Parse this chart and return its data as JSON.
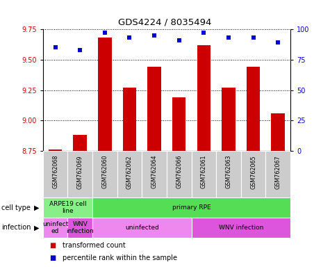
{
  "title": "GDS4224 / 8035494",
  "samples": [
    "GSM762068",
    "GSM762069",
    "GSM762060",
    "GSM762062",
    "GSM762064",
    "GSM762066",
    "GSM762061",
    "GSM762063",
    "GSM762065",
    "GSM762067"
  ],
  "transformed_counts": [
    8.76,
    8.88,
    9.68,
    9.27,
    9.44,
    9.19,
    9.62,
    9.27,
    9.44,
    9.06
  ],
  "percentile_ranks": [
    85,
    83,
    97,
    93,
    95,
    91,
    97,
    93,
    93,
    89
  ],
  "ylim_left": [
    8.75,
    9.75
  ],
  "ylim_right": [
    0,
    100
  ],
  "yticks_left": [
    8.75,
    9.0,
    9.25,
    9.5,
    9.75
  ],
  "yticks_right": [
    0,
    25,
    50,
    75,
    100
  ],
  "bar_color": "#cc0000",
  "dot_color": "#0000cc",
  "sample_bg_color": "#cccccc",
  "cell_type_labels": [
    {
      "label": "ARPE19 cell\nline",
      "start": 0,
      "end": 2,
      "color": "#88ee88"
    },
    {
      "label": "primary RPE",
      "start": 2,
      "end": 10,
      "color": "#55dd55"
    }
  ],
  "infection_labels": [
    {
      "label": "uninfect\ned",
      "start": 0,
      "end": 1,
      "color": "#ee88ee"
    },
    {
      "label": "WNV\ninfection",
      "start": 1,
      "end": 2,
      "color": "#dd55dd"
    },
    {
      "label": "uninfected",
      "start": 2,
      "end": 6,
      "color": "#ee88ee"
    },
    {
      "label": "WNV infection",
      "start": 6,
      "end": 10,
      "color": "#dd55dd"
    }
  ],
  "legend_items": [
    {
      "label": "transformed count",
      "color": "#cc0000"
    },
    {
      "label": "percentile rank within the sample",
      "color": "#0000cc"
    }
  ],
  "background_color": "#ffffff"
}
